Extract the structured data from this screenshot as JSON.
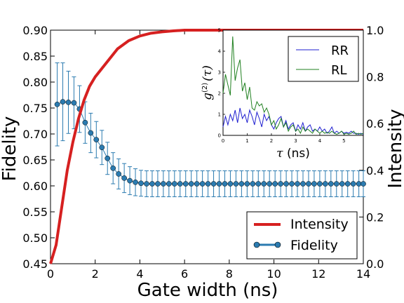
{
  "chart_data": {
    "main": {
      "type": "line",
      "xlabel": "Gate width (ns)",
      "ylabel_left": "Fidelity",
      "ylabel_right": "Intensity",
      "xlim": [
        0,
        14
      ],
      "ylim_left": [
        0.45,
        0.9
      ],
      "ylim_right": [
        0.0,
        1.0
      ],
      "x_ticks": [
        "0",
        "2",
        "4",
        "6",
        "8",
        "10",
        "12",
        "14"
      ],
      "y_ticks_left": [
        "0.45",
        "0.50",
        "0.55",
        "0.60",
        "0.65",
        "0.70",
        "0.75",
        "0.80",
        "0.85",
        "0.90"
      ],
      "y_ticks_right": [
        "0.0",
        "0.2",
        "0.4",
        "0.6",
        "0.8",
        "1.0"
      ],
      "legend_position": "lower-right",
      "series": [
        {
          "name": "Intensity",
          "axis": "right",
          "color": "#d62020",
          "x": [
            0,
            0.25,
            0.5,
            0.75,
            1.0,
            1.25,
            1.5,
            1.75,
            2.0,
            2.5,
            3.0,
            3.5,
            4.0,
            4.5,
            5.0,
            5.5,
            6.0,
            7.0,
            8.0,
            10.0,
            12.0,
            14.0
          ],
          "y": [
            0.0,
            0.08,
            0.24,
            0.4,
            0.52,
            0.62,
            0.7,
            0.76,
            0.8,
            0.86,
            0.92,
            0.955,
            0.975,
            0.987,
            0.993,
            0.997,
            1.0,
            1.0,
            1.0,
            1.0,
            1.0,
            1.0
          ]
        },
        {
          "name": "Fidelity",
          "axis": "left",
          "color": "#2b7bb0",
          "x": [
            0.3,
            0.55,
            0.8,
            1.05,
            1.3,
            1.55,
            1.8,
            2.05,
            2.3,
            2.55,
            2.8,
            3.05,
            3.3,
            3.55,
            3.8,
            4.05,
            4.3,
            4.55,
            4.8,
            5.05,
            5.3,
            5.55,
            5.8,
            6.05,
            6.3,
            6.55,
            6.8,
            7.05,
            7.3,
            7.55,
            7.8,
            8.05,
            8.3,
            8.55,
            8.8,
            9.05,
            9.3,
            9.55,
            9.8,
            10.05,
            10.3,
            10.55,
            10.8,
            11.05,
            11.3,
            11.55,
            11.8,
            12.05,
            12.3,
            12.55,
            12.8,
            13.05,
            13.3,
            13.55,
            13.8,
            14.0
          ],
          "y": [
            0.757,
            0.762,
            0.761,
            0.76,
            0.748,
            0.722,
            0.702,
            0.689,
            0.674,
            0.653,
            0.634,
            0.623,
            0.615,
            0.61,
            0.607,
            0.605,
            0.604,
            0.604,
            0.604,
            0.604,
            0.604,
            0.604,
            0.604,
            0.604,
            0.604,
            0.604,
            0.604,
            0.604,
            0.604,
            0.604,
            0.604,
            0.604,
            0.604,
            0.604,
            0.604,
            0.604,
            0.604,
            0.604,
            0.604,
            0.604,
            0.604,
            0.604,
            0.604,
            0.604,
            0.604,
            0.604,
            0.604,
            0.604,
            0.604,
            0.604,
            0.604,
            0.604,
            0.604,
            0.604,
            0.604,
            0.604
          ],
          "err": [
            0.08,
            0.075,
            0.06,
            0.05,
            0.045,
            0.04,
            0.038,
            0.035,
            0.033,
            0.031,
            0.03,
            0.029,
            0.028,
            0.027,
            0.026,
            0.025,
            0.025,
            0.025,
            0.025,
            0.025,
            0.025,
            0.025,
            0.025,
            0.025,
            0.025,
            0.025,
            0.025,
            0.025,
            0.025,
            0.025,
            0.025,
            0.025,
            0.025,
            0.025,
            0.025,
            0.025,
            0.025,
            0.025,
            0.025,
            0.025,
            0.025,
            0.025,
            0.025,
            0.025,
            0.025,
            0.025,
            0.025,
            0.025,
            0.025,
            0.025,
            0.025,
            0.025,
            0.025,
            0.025,
            0.025,
            0.025
          ]
        }
      ]
    },
    "inset": {
      "type": "line",
      "xlabel_symbol": "τ",
      "xlabel_unit": " (ns)",
      "ylabel_base": "g",
      "ylabel_sup": "(2)",
      "ylabel_arg": "(τ)",
      "xlim": [
        0,
        5.8
      ],
      "ylim": [
        0,
        5
      ],
      "x_ticks": [
        "0",
        "1",
        "2",
        "3",
        "4",
        "5"
      ],
      "y_ticks": [
        "0",
        "1",
        "2",
        "3",
        "4",
        "5"
      ],
      "legend_position": "top-right",
      "series": [
        {
          "name": "RR",
          "color": "#1f1fd0",
          "x": [
            0,
            0.1,
            0.2,
            0.3,
            0.4,
            0.5,
            0.6,
            0.7,
            0.8,
            0.9,
            1.0,
            1.1,
            1.2,
            1.3,
            1.4,
            1.5,
            1.6,
            1.7,
            1.8,
            1.9,
            2.0,
            2.1,
            2.2,
            2.3,
            2.4,
            2.5,
            2.6,
            2.7,
            2.8,
            2.9,
            3.0,
            3.1,
            3.2,
            3.3,
            3.4,
            3.5,
            3.6,
            3.7,
            3.8,
            3.9,
            4.0,
            4.1,
            4.2,
            4.3,
            4.4,
            4.5,
            4.6,
            4.7,
            4.8,
            4.9,
            5.0,
            5.1,
            5.2,
            5.3,
            5.4,
            5.5,
            5.6,
            5.7,
            5.8
          ],
          "y": [
            0.4,
            0.9,
            0.5,
            1.0,
            0.7,
            1.2,
            0.6,
            1.3,
            0.8,
            1.0,
            0.6,
            1.2,
            0.9,
            0.5,
            1.1,
            0.8,
            0.4,
            1.0,
            0.7,
            0.9,
            0.5,
            0.3,
            0.6,
            0.8,
            0.9,
            0.4,
            0.7,
            0.3,
            0.5,
            0.6,
            0.2,
            0.5,
            0.3,
            0.6,
            0.2,
            0.4,
            0.5,
            0.2,
            0.3,
            0.2,
            0.4,
            0.2,
            0.3,
            0.1,
            0.2,
            0.4,
            0.1,
            0.2,
            0.1,
            0.2,
            0.1,
            0.15,
            0.1,
            0.2,
            0.1,
            0.1,
            0.05,
            0.1,
            0.05
          ]
        },
        {
          "name": "RL",
          "color": "#208020",
          "x": [
            0,
            0.1,
            0.2,
            0.3,
            0.4,
            0.5,
            0.6,
            0.7,
            0.8,
            0.9,
            1.0,
            1.1,
            1.2,
            1.3,
            1.4,
            1.5,
            1.6,
            1.7,
            1.8,
            1.9,
            2.0,
            2.1,
            2.2,
            2.3,
            2.4,
            2.5,
            2.6,
            2.7,
            2.8,
            2.9,
            3.0,
            3.1,
            3.2,
            3.3,
            3.4,
            3.5,
            3.6,
            3.7,
            3.8,
            3.9,
            4.0,
            4.1,
            4.2,
            4.3,
            4.4,
            4.5,
            4.6,
            4.7,
            4.8,
            4.9,
            5.0,
            5.1,
            5.2,
            5.3,
            5.4,
            5.5,
            5.6,
            5.7,
            5.8
          ],
          "y": [
            2.0,
            2.9,
            2.4,
            1.9,
            4.7,
            2.6,
            3.2,
            3.6,
            2.1,
            2.5,
            1.7,
            2.3,
            1.3,
            1.2,
            1.6,
            1.4,
            1.5,
            1.1,
            1.3,
            1.0,
            0.5,
            0.7,
            0.3,
            0.5,
            0.8,
            0.4,
            0.6,
            0.2,
            0.4,
            0.5,
            0.2,
            0.3,
            0.1,
            0.4,
            0.2,
            0.3,
            0.2,
            0.1,
            0.3,
            0.2,
            0.1,
            0.2,
            0.1,
            0.15,
            0.1,
            0.2,
            0.1,
            0.05,
            0.1,
            0.2,
            0.05,
            0.1,
            0.05,
            0.1,
            0.2,
            0.05,
            0.1,
            0.05,
            0.1
          ]
        }
      ]
    }
  }
}
